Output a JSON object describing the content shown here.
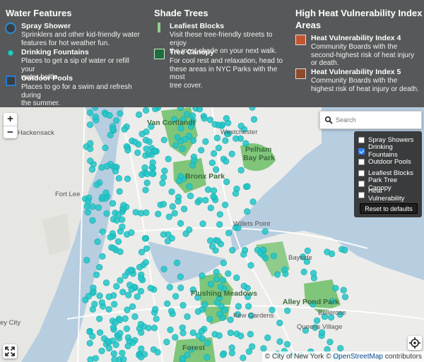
{
  "legend": {
    "water": {
      "heading": "Water Features",
      "spray": {
        "title": "Spray Shower",
        "desc": [
          "Sprinklers and other kid-friendly water",
          "features for hot weather fun."
        ]
      },
      "fountain": {
        "title": "Drinking Fountains",
        "desc": [
          "Places to get a sip of water or refill your",
          "water bottle."
        ]
      },
      "pool": {
        "title": "Outdoor Pools",
        "desc": [
          "Places to go for a swim and refresh during",
          "the summer."
        ]
      }
    },
    "shade": {
      "heading": "Shade Trees",
      "leafy": {
        "title": "Leafiest Blocks",
        "desc": [
          "Visit these tree-friendly streets to enjoy",
          "the most shade on your next walk."
        ]
      },
      "canopy": {
        "title": "Tree Canopy",
        "desc": [
          "For cool rest and relaxation, head to",
          "these areas in NYC Parks with the most",
          "tree cover."
        ]
      }
    },
    "heat": {
      "heading": [
        "High Heat Vulnerability Index",
        "Areas"
      ],
      "hvi4": {
        "title": "Heat Vulnerability Index 4",
        "desc": [
          "Community Boards with the",
          "second-highest risk of heat injury",
          "or death."
        ]
      },
      "hvi5": {
        "title": "Heat Vulnerability Index 5",
        "desc": [
          "Community Boards with the",
          "highest risk of heat injury or death."
        ]
      }
    }
  },
  "map": {
    "zoom_in": "+",
    "zoom_out": "−",
    "search_placeholder": "Search",
    "labels": {
      "hackensack": "Hackensack",
      "van_cortlandt": "Van Cortlandt",
      "pelham_bay": "Pelham",
      "pelham_bay2": "Bay Park",
      "westchester": "Westchester",
      "bronx_park": "Bronx Park",
      "flushing_meadows": "Flushing Meadows",
      "alley_pond": "Alley Pond Park",
      "forest": "Forest",
      "ey_city": "ey City",
      "bayside": "Bayside",
      "fort_lee": "Fort Lee",
      "willets_point": "Willets Point",
      "kew_gardens": "Kew Gardens",
      "bellerose": "Bellerose",
      "queens_village": "Queens Village"
    },
    "layers": [
      {
        "label": "Spray Showers",
        "checked": false
      },
      {
        "label": "Drinking Fountains",
        "checked": true
      },
      {
        "label": "Outdoor Pools",
        "checked": false
      },
      {
        "label": "Leafiest Blocks",
        "checked": false
      },
      {
        "label": "Park Tree Canopy",
        "checked": false
      },
      {
        "label": "Heat Vulnerability",
        "checked": false
      }
    ],
    "reset_label": "Reset to defaults",
    "attribution": {
      "city": "City of New York",
      "osm": "OpenStreetMap",
      "suffix": "contributors"
    },
    "colors": {
      "water": "#b7cde0",
      "land": "#ececea",
      "park": "#7fc57a",
      "fountain": "#22c6c8"
    }
  }
}
